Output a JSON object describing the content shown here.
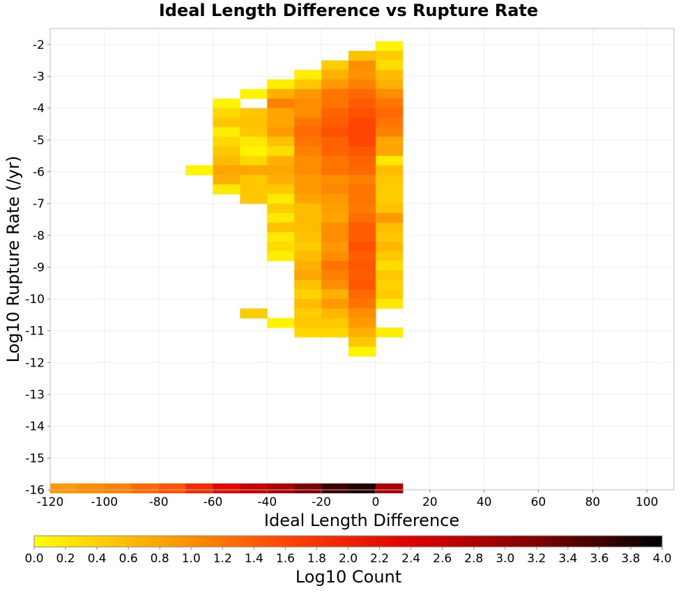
{
  "chart_data": {
    "type": "heatmap",
    "title": "Ideal Length Difference vs Rupture Rate",
    "xlabel": "Ideal Length Difference",
    "ylabel": "Log10 Rupture Rate (/yr)",
    "xlim": [
      -120,
      110
    ],
    "ylim": [
      -16,
      -1.5
    ],
    "xticks": [
      "-120",
      "-100",
      "-80",
      "-60",
      "-40",
      "-20",
      "0",
      "20",
      "40",
      "60",
      "80",
      "100"
    ],
    "yticks": [
      "-2",
      "-3",
      "-4",
      "-5",
      "-6",
      "-7",
      "-8",
      "-9",
      "-10",
      "-11",
      "-12",
      "-13",
      "-14",
      "-15",
      "-16"
    ],
    "grid": true,
    "bin_width_x": 10,
    "bin_height_y": 0.3,
    "value_label": "Log10 Count",
    "colorbar": {
      "label": "Log10 Count",
      "range": [
        0,
        4
      ],
      "ticks": [
        "0.0",
        "0.2",
        "0.4",
        "0.6",
        "0.8",
        "1.0",
        "1.2",
        "1.4",
        "1.6",
        "1.8",
        "2.0",
        "2.2",
        "2.4",
        "2.6",
        "2.8",
        "3.0",
        "3.2",
        "3.4",
        "3.6",
        "3.8",
        "4.0"
      ],
      "colors": [
        "#ffff00",
        "#ffa500",
        "#ff4500",
        "#dd0000",
        "#800000",
        "#000000"
      ]
    },
    "cells": [
      {
        "x": 0,
        "y": -2.05,
        "v": 0.1
      },
      {
        "x": -10,
        "y": -2.35,
        "v": 0.55
      },
      {
        "x": -20,
        "y": -2.65,
        "v": 0.45
      },
      {
        "x": -10,
        "y": -2.65,
        "v": 1.0
      },
      {
        "x": 0,
        "y": -2.35,
        "v": 0.45
      },
      {
        "x": 0,
        "y": -2.65,
        "v": 0.3
      },
      {
        "x": -30,
        "y": -2.95,
        "v": 0.15
      },
      {
        "x": -20,
        "y": -2.95,
        "v": 0.7
      },
      {
        "x": -10,
        "y": -2.95,
        "v": 0.95
      },
      {
        "x": -10,
        "y": -2.35,
        "v": 0.55
      },
      {
        "x": 0,
        "y": -2.95,
        "v": 0.6
      },
      {
        "x": -40,
        "y": -3.25,
        "v": 0.15
      },
      {
        "x": -30,
        "y": -3.25,
        "v": 0.5
      },
      {
        "x": -20,
        "y": -3.25,
        "v": 0.9
      },
      {
        "x": -10,
        "y": -3.25,
        "v": 1.1
      },
      {
        "x": 0,
        "y": -3.25,
        "v": 0.7
      },
      {
        "x": -50,
        "y": -3.55,
        "v": 0.1
      },
      {
        "x": -40,
        "y": -3.55,
        "v": 0.7
      },
      {
        "x": -30,
        "y": -3.55,
        "v": 0.9
      },
      {
        "x": -20,
        "y": -3.55,
        "v": 1.2
      },
      {
        "x": -10,
        "y": -3.55,
        "v": 1.3
      },
      {
        "x": 0,
        "y": -3.55,
        "v": 1.0
      },
      {
        "x": -60,
        "y": -3.85,
        "v": 0.1
      },
      {
        "x": -40,
        "y": -3.85,
        "v": 1.1
      },
      {
        "x": -30,
        "y": -3.85,
        "v": 1.0
      },
      {
        "x": -20,
        "y": -3.85,
        "v": 1.2
      },
      {
        "x": -10,
        "y": -3.85,
        "v": 1.4
      },
      {
        "x": 0,
        "y": -3.85,
        "v": 1.2
      },
      {
        "x": -60,
        "y": -4.15,
        "v": 0.35
      },
      {
        "x": -50,
        "y": -4.15,
        "v": 0.5
      },
      {
        "x": -40,
        "y": -4.15,
        "v": 0.8
      },
      {
        "x": -30,
        "y": -4.15,
        "v": 1.0
      },
      {
        "x": -20,
        "y": -4.15,
        "v": 1.35
      },
      {
        "x": -10,
        "y": -4.15,
        "v": 1.5
      },
      {
        "x": 0,
        "y": -4.15,
        "v": 1.3
      },
      {
        "x": -60,
        "y": -4.45,
        "v": 0.5
      },
      {
        "x": -50,
        "y": -4.45,
        "v": 0.55
      },
      {
        "x": -40,
        "y": -4.45,
        "v": 0.8
      },
      {
        "x": -30,
        "y": -4.45,
        "v": 1.2
      },
      {
        "x": -20,
        "y": -4.45,
        "v": 1.4
      },
      {
        "x": -10,
        "y": -4.45,
        "v": 1.6
      },
      {
        "x": 0,
        "y": -4.45,
        "v": 1.2
      },
      {
        "x": -60,
        "y": -4.75,
        "v": 0.15
      },
      {
        "x": -50,
        "y": -4.75,
        "v": 0.5
      },
      {
        "x": -40,
        "y": -4.75,
        "v": 0.9
      },
      {
        "x": -30,
        "y": -4.75,
        "v": 1.3
      },
      {
        "x": -20,
        "y": -4.75,
        "v": 1.5
      },
      {
        "x": -10,
        "y": -4.75,
        "v": 1.6
      },
      {
        "x": 0,
        "y": -4.75,
        "v": 1.1
      },
      {
        "x": -60,
        "y": -5.05,
        "v": 0.35
      },
      {
        "x": -50,
        "y": -5.05,
        "v": 0.2
      },
      {
        "x": -40,
        "y": -5.05,
        "v": 0.55
      },
      {
        "x": -30,
        "y": -5.05,
        "v": 1.2
      },
      {
        "x": -20,
        "y": -5.05,
        "v": 1.35
      },
      {
        "x": -10,
        "y": -5.05,
        "v": 1.6
      },
      {
        "x": 0,
        "y": -5.05,
        "v": 0.8
      },
      {
        "x": -60,
        "y": -5.35,
        "v": 0.5
      },
      {
        "x": -50,
        "y": -5.35,
        "v": 0.1
      },
      {
        "x": -40,
        "y": -5.35,
        "v": 0.3
      },
      {
        "x": -30,
        "y": -5.35,
        "v": 1.1
      },
      {
        "x": -20,
        "y": -5.35,
        "v": 1.35
      },
      {
        "x": -10,
        "y": -5.35,
        "v": 1.45
      },
      {
        "x": 0,
        "y": -5.35,
        "v": 0.8
      },
      {
        "x": -60,
        "y": -5.65,
        "v": 0.6
      },
      {
        "x": -50,
        "y": -5.65,
        "v": 0.35
      },
      {
        "x": -40,
        "y": -5.65,
        "v": 0.7
      },
      {
        "x": -30,
        "y": -5.65,
        "v": 1.0
      },
      {
        "x": -20,
        "y": -5.65,
        "v": 1.2
      },
      {
        "x": -10,
        "y": -5.65,
        "v": 1.35
      },
      {
        "x": 0,
        "y": -5.65,
        "v": 0.2
      },
      {
        "x": -70,
        "y": -5.95,
        "v": 0.1
      },
      {
        "x": -60,
        "y": -5.95,
        "v": 0.8
      },
      {
        "x": -50,
        "y": -5.95,
        "v": 0.8
      },
      {
        "x": -40,
        "y": -5.95,
        "v": 0.8
      },
      {
        "x": -30,
        "y": -5.95,
        "v": 1.0
      },
      {
        "x": -20,
        "y": -5.95,
        "v": 1.2
      },
      {
        "x": -10,
        "y": -5.95,
        "v": 1.3
      },
      {
        "x": 0,
        "y": -5.95,
        "v": 0.6
      },
      {
        "x": -60,
        "y": -6.25,
        "v": 0.7
      },
      {
        "x": -50,
        "y": -6.25,
        "v": 0.5
      },
      {
        "x": -40,
        "y": -6.25,
        "v": 0.7
      },
      {
        "x": -30,
        "y": -6.25,
        "v": 0.9
      },
      {
        "x": -20,
        "y": -6.25,
        "v": 1.0
      },
      {
        "x": -10,
        "y": -6.25,
        "v": 1.1
      },
      {
        "x": 0,
        "y": -6.25,
        "v": 0.5
      },
      {
        "x": -60,
        "y": -6.55,
        "v": 0.2
      },
      {
        "x": -50,
        "y": -6.55,
        "v": 0.5
      },
      {
        "x": -40,
        "y": -6.55,
        "v": 0.5
      },
      {
        "x": -30,
        "y": -6.55,
        "v": 0.9
      },
      {
        "x": -20,
        "y": -6.55,
        "v": 1.05
      },
      {
        "x": -10,
        "y": -6.55,
        "v": 1.2
      },
      {
        "x": 0,
        "y": -6.55,
        "v": 0.45
      },
      {
        "x": -50,
        "y": -6.85,
        "v": 0.5
      },
      {
        "x": -40,
        "y": -6.85,
        "v": 0.2
      },
      {
        "x": -30,
        "y": -6.85,
        "v": 0.8
      },
      {
        "x": -20,
        "y": -6.85,
        "v": 0.9
      },
      {
        "x": -10,
        "y": -6.85,
        "v": 1.2
      },
      {
        "x": 0,
        "y": -6.85,
        "v": 0.45
      },
      {
        "x": -40,
        "y": -7.15,
        "v": 0.45
      },
      {
        "x": -30,
        "y": -7.15,
        "v": 0.6
      },
      {
        "x": -20,
        "y": -7.15,
        "v": 0.85
      },
      {
        "x": -10,
        "y": -7.15,
        "v": 1.15
      },
      {
        "x": 0,
        "y": -7.15,
        "v": 0.55
      },
      {
        "x": -40,
        "y": -7.45,
        "v": 0.2
      },
      {
        "x": -30,
        "y": -7.45,
        "v": 0.6
      },
      {
        "x": -20,
        "y": -7.45,
        "v": 0.8
      },
      {
        "x": -10,
        "y": -7.45,
        "v": 1.25
      },
      {
        "x": 0,
        "y": -7.45,
        "v": 0.9
      },
      {
        "x": -40,
        "y": -7.75,
        "v": 0.55
      },
      {
        "x": -30,
        "y": -7.75,
        "v": 0.6
      },
      {
        "x": -20,
        "y": -7.75,
        "v": 1.0
      },
      {
        "x": -10,
        "y": -7.75,
        "v": 1.4
      },
      {
        "x": 0,
        "y": -7.75,
        "v": 0.6
      },
      {
        "x": -40,
        "y": -8.05,
        "v": 0.2
      },
      {
        "x": -30,
        "y": -8.05,
        "v": 0.55
      },
      {
        "x": -20,
        "y": -8.05,
        "v": 1.0
      },
      {
        "x": -10,
        "y": -8.05,
        "v": 1.4
      },
      {
        "x": 0,
        "y": -8.05,
        "v": 0.5
      },
      {
        "x": -40,
        "y": -8.35,
        "v": 0.3
      },
      {
        "x": -30,
        "y": -8.35,
        "v": 0.45
      },
      {
        "x": -20,
        "y": -8.35,
        "v": 0.9
      },
      {
        "x": -10,
        "y": -8.35,
        "v": 1.5
      },
      {
        "x": 0,
        "y": -8.35,
        "v": 0.65
      },
      {
        "x": -40,
        "y": -8.65,
        "v": 0.15
      },
      {
        "x": -30,
        "y": -8.65,
        "v": 0.6
      },
      {
        "x": -20,
        "y": -8.65,
        "v": 1.0
      },
      {
        "x": -10,
        "y": -8.65,
        "v": 1.4
      },
      {
        "x": 0,
        "y": -8.65,
        "v": 0.5
      },
      {
        "x": -30,
        "y": -8.95,
        "v": 0.7
      },
      {
        "x": -20,
        "y": -8.95,
        "v": 1.2
      },
      {
        "x": -10,
        "y": -8.95,
        "v": 1.45
      },
      {
        "x": 0,
        "y": -8.95,
        "v": 0.3
      },
      {
        "x": -30,
        "y": -9.25,
        "v": 0.8
      },
      {
        "x": -20,
        "y": -9.25,
        "v": 1.1
      },
      {
        "x": -10,
        "y": -9.25,
        "v": 1.4
      },
      {
        "x": 0,
        "y": -9.25,
        "v": 0.5
      },
      {
        "x": -30,
        "y": -9.55,
        "v": 0.55
      },
      {
        "x": -20,
        "y": -9.55,
        "v": 1.0
      },
      {
        "x": -10,
        "y": -9.55,
        "v": 1.45
      },
      {
        "x": 0,
        "y": -9.55,
        "v": 0.4
      },
      {
        "x": -30,
        "y": -9.85,
        "v": 0.4
      },
      {
        "x": -20,
        "y": -9.85,
        "v": 0.7
      },
      {
        "x": -10,
        "y": -9.85,
        "v": 1.3
      },
      {
        "x": 0,
        "y": -9.85,
        "v": 0.45
      },
      {
        "x": -30,
        "y": -10.15,
        "v": 0.6
      },
      {
        "x": -20,
        "y": -10.15,
        "v": 0.9
      },
      {
        "x": -10,
        "y": -10.15,
        "v": 1.2
      },
      {
        "x": 0,
        "y": -10.15,
        "v": 0.2
      },
      {
        "x": -50,
        "y": -10.45,
        "v": 0.45
      },
      {
        "x": -30,
        "y": -10.45,
        "v": 0.45
      },
      {
        "x": -20,
        "y": -10.45,
        "v": 0.65
      },
      {
        "x": -10,
        "y": -10.45,
        "v": 1.0
      },
      {
        "x": -40,
        "y": -10.75,
        "v": 0.1
      },
      {
        "x": -30,
        "y": -10.75,
        "v": 0.5
      },
      {
        "x": -20,
        "y": -10.75,
        "v": 0.5
      },
      {
        "x": -10,
        "y": -10.75,
        "v": 0.9
      },
      {
        "x": -30,
        "y": -11.05,
        "v": 0.35
      },
      {
        "x": -20,
        "y": -11.05,
        "v": 0.35
      },
      {
        "x": -10,
        "y": -11.05,
        "v": 0.7
      },
      {
        "x": 0,
        "y": -11.05,
        "v": 0.15
      },
      {
        "x": -10,
        "y": -11.35,
        "v": 0.5
      },
      {
        "x": -10,
        "y": -11.65,
        "v": 0.1
      },
      {
        "x": -120,
        "y": -15.95,
        "v": 0.9
      },
      {
        "x": -110,
        "y": -15.95,
        "v": 1.0
      },
      {
        "x": -100,
        "y": -15.95,
        "v": 1.1
      },
      {
        "x": -90,
        "y": -15.95,
        "v": 1.3
      },
      {
        "x": -80,
        "y": -15.95,
        "v": 1.5
      },
      {
        "x": -70,
        "y": -15.95,
        "v": 1.9
      },
      {
        "x": -60,
        "y": -15.95,
        "v": 2.3
      },
      {
        "x": -50,
        "y": -15.95,
        "v": 2.6
      },
      {
        "x": -40,
        "y": -15.95,
        "v": 2.8
      },
      {
        "x": -30,
        "y": -15.95,
        "v": 3.2
      },
      {
        "x": -20,
        "y": -15.95,
        "v": 3.6
      },
      {
        "x": -10,
        "y": -15.95,
        "v": 3.8
      },
      {
        "x": 0,
        "y": -15.95,
        "v": 2.8
      }
    ]
  }
}
